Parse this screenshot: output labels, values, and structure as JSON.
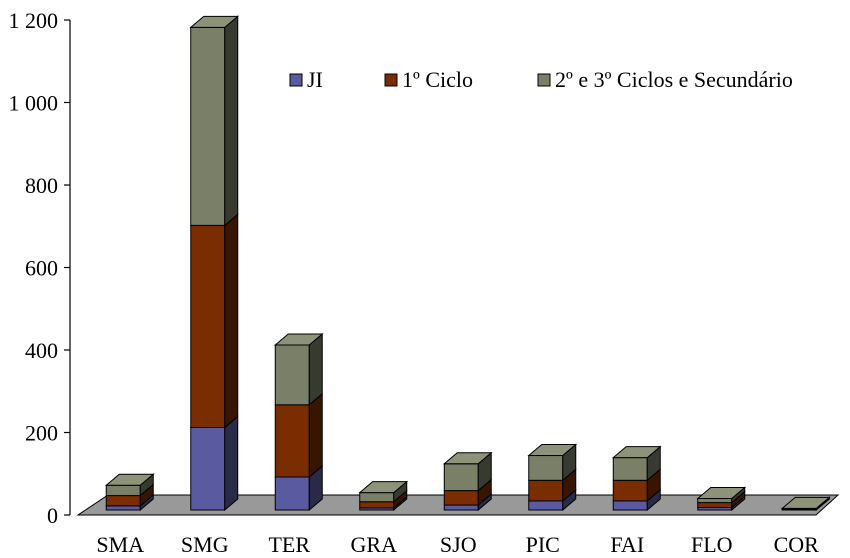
{
  "chart_data": {
    "type": "bar",
    "stacked": true,
    "three_d": true,
    "categories": [
      "SMA",
      "SMG",
      "TER",
      "GRA",
      "SJO",
      "PIC",
      "FAI",
      "FLO",
      "COR"
    ],
    "series": [
      {
        "name": "JI",
        "color": "#5a5aa0",
        "values": [
          10,
          200,
          80,
          5,
          12,
          22,
          22,
          6,
          1
        ]
      },
      {
        "name": "1º Ciclo",
        "color": "#7a2e00",
        "values": [
          25,
          490,
          175,
          15,
          35,
          50,
          50,
          12,
          2
        ]
      },
      {
        "name": "2º e 3º Ciclos e Secundário",
        "color": "#7a8068",
        "values": [
          25,
          480,
          145,
          22,
          65,
          60,
          55,
          10,
          1
        ]
      }
    ],
    "yticks": [
      "0",
      "200",
      "400",
      "600",
      "800",
      "1 000",
      "1 200"
    ],
    "ylim": [
      0,
      1200
    ],
    "grid": false,
    "legend_position": "top-right",
    "floor_color": "#999999",
    "side_color": "#333333"
  }
}
